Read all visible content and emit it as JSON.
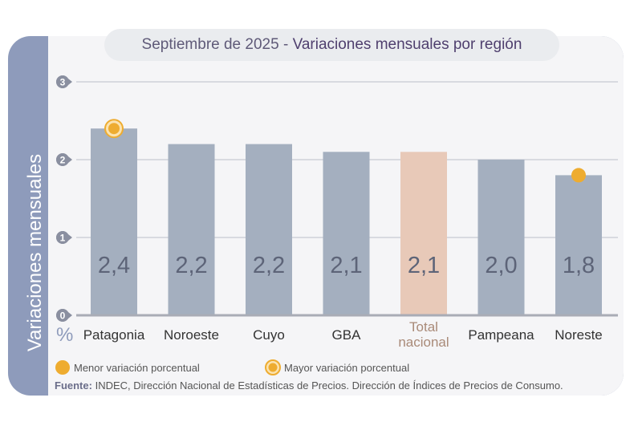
{
  "chart_data": {
    "type": "bar",
    "title_prefix": "Septiembre de 2025 - ",
    "title": "Variaciones mensuales por región",
    "ylabel": "Variaciones mensuales",
    "yunit": "%",
    "categories": [
      "Patagonia",
      "Noroeste",
      "Cuyo",
      "GBA",
      "Total nacional",
      "Pampeana",
      "Noreste"
    ],
    "values": [
      2.4,
      2.2,
      2.2,
      2.1,
      2.1,
      2.0,
      1.8
    ],
    "data_labels": [
      "2,4",
      "2,2",
      "2,2",
      "2,1",
      "2,1",
      "2,0",
      "1,8"
    ],
    "highlight_category": "Total nacional",
    "ylim": [
      0,
      3
    ],
    "yticks": [
      "0",
      "1",
      "2",
      "3"
    ],
    "grid": true,
    "markers": {
      "Patagonia": "mayor",
      "Noreste": "menor"
    },
    "colors": {
      "bar": "#a4afbf",
      "highlight_bar": "#e8c9b8",
      "highlight_label": "#a98a78",
      "marker": "#eeac30",
      "tick_badge": "#8a8fa0"
    },
    "legend": {
      "menor": "Menor variación porcentual",
      "mayor": "Mayor variación porcentual"
    },
    "source_label": "Fuente:",
    "source": "INDEC, Dirección Nacional de Estadísticas de Precios. Dirección de Índices de Precios de Consumo."
  }
}
